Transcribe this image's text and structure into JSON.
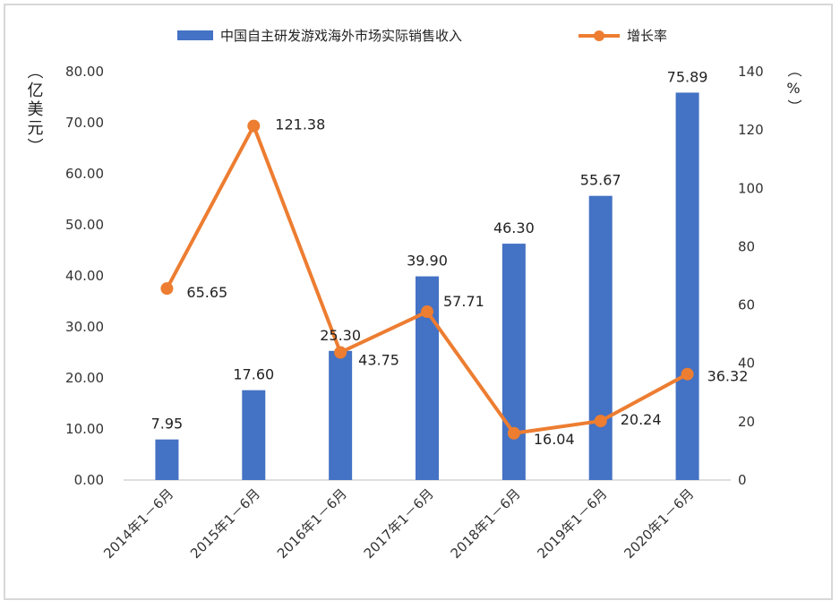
{
  "chart_data": {
    "type": "bar+line",
    "categories": [
      "2014年1－6月",
      "2015年1－6月",
      "2016年1－6月",
      "2017年1－6月",
      "2018年1－6月",
      "2019年1－6月",
      "2020年1－6月"
    ],
    "series": [
      {
        "name": "中国自主研发游戏海外市场实际销售收入",
        "type": "bar",
        "axis": "left",
        "color": "#4472c4",
        "values": [
          7.95,
          17.6,
          25.3,
          39.9,
          46.3,
          55.67,
          75.89
        ],
        "labels": [
          "7.95",
          "17.60",
          "25.30",
          "39.90",
          "46.30",
          "55.67",
          "75.89"
        ]
      },
      {
        "name": "增长率",
        "type": "line",
        "axis": "right",
        "color": "#ed7d31",
        "values": [
          65.65,
          121.38,
          43.75,
          57.71,
          16.04,
          20.24,
          36.32
        ],
        "labels": [
          "65.65",
          "121.38",
          "43.75",
          "57.71",
          "16.04",
          "20.24",
          "36.32"
        ]
      }
    ],
    "y_left": {
      "label": "（亿美元）",
      "range": [
        0,
        80
      ],
      "ticks": [
        "0.00",
        "10.00",
        "20.00",
        "30.00",
        "40.00",
        "50.00",
        "60.00",
        "70.00",
        "80.00"
      ]
    },
    "y_right": {
      "label": "（%）",
      "range": [
        0,
        140
      ],
      "ticks": [
        "0",
        "20",
        "40",
        "60",
        "80",
        "100",
        "120",
        "140"
      ]
    },
    "legend_position": "top",
    "grid": false
  }
}
